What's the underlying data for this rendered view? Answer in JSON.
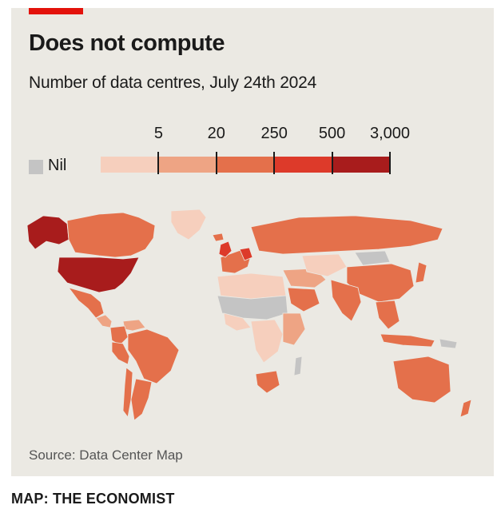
{
  "header": {
    "title": "Does not compute",
    "subtitle": "Number of data centres, July 24th 2024"
  },
  "legend": {
    "nil_label": "Nil",
    "nil_color": "#c4c4c4",
    "bins": [
      {
        "color": "#f6cfbd"
      },
      {
        "color": "#eea484"
      },
      {
        "color": "#e4704b"
      },
      {
        "color": "#dd3a2a"
      },
      {
        "color": "#a81c1c"
      }
    ],
    "thresholds": [
      "5",
      "20",
      "250",
      "500",
      "3,000"
    ]
  },
  "map": {
    "regions": [
      {
        "name": "Alaska",
        "bin": 4
      },
      {
        "name": "Canada",
        "bin": 2
      },
      {
        "name": "Greenland",
        "bin": 0
      },
      {
        "name": "United States",
        "bin": 4
      },
      {
        "name": "Mexico",
        "bin": 2
      },
      {
        "name": "Central America",
        "bin": 1
      },
      {
        "name": "Colombia",
        "bin": 2
      },
      {
        "name": "Venezuela",
        "bin": 1
      },
      {
        "name": "Brazil",
        "bin": 2
      },
      {
        "name": "Peru",
        "bin": 2
      },
      {
        "name": "Argentina",
        "bin": 2
      },
      {
        "name": "Chile",
        "bin": 2
      },
      {
        "name": "Iceland",
        "bin": 2
      },
      {
        "name": "United Kingdom",
        "bin": 3
      },
      {
        "name": "Western Europe",
        "bin": 2
      },
      {
        "name": "Germany",
        "bin": 3
      },
      {
        "name": "Russia",
        "bin": 2
      },
      {
        "name": "North Africa",
        "bin": 0
      },
      {
        "name": "Sahel",
        "bin": -1
      },
      {
        "name": "West Africa",
        "bin": 0
      },
      {
        "name": "Central Africa",
        "bin": 0
      },
      {
        "name": "East Africa",
        "bin": 1
      },
      {
        "name": "South Africa",
        "bin": 2
      },
      {
        "name": "Madagascar",
        "bin": -1
      },
      {
        "name": "Middle East",
        "bin": 1
      },
      {
        "name": "Saudi Arabia",
        "bin": 2
      },
      {
        "name": "Central Asia",
        "bin": 0
      },
      {
        "name": "Mongolia",
        "bin": -1
      },
      {
        "name": "China",
        "bin": 2
      },
      {
        "name": "India",
        "bin": 2
      },
      {
        "name": "Southeast Asia",
        "bin": 2
      },
      {
        "name": "Japan",
        "bin": 2
      },
      {
        "name": "Indonesia",
        "bin": 2
      },
      {
        "name": "Papua New Guinea",
        "bin": -1
      },
      {
        "name": "Australia",
        "bin": 2
      },
      {
        "name": "New Zealand",
        "bin": 2
      }
    ]
  },
  "footer": {
    "source": "Source: Data Center Map",
    "credit": "MAP: THE ECONOMIST"
  }
}
